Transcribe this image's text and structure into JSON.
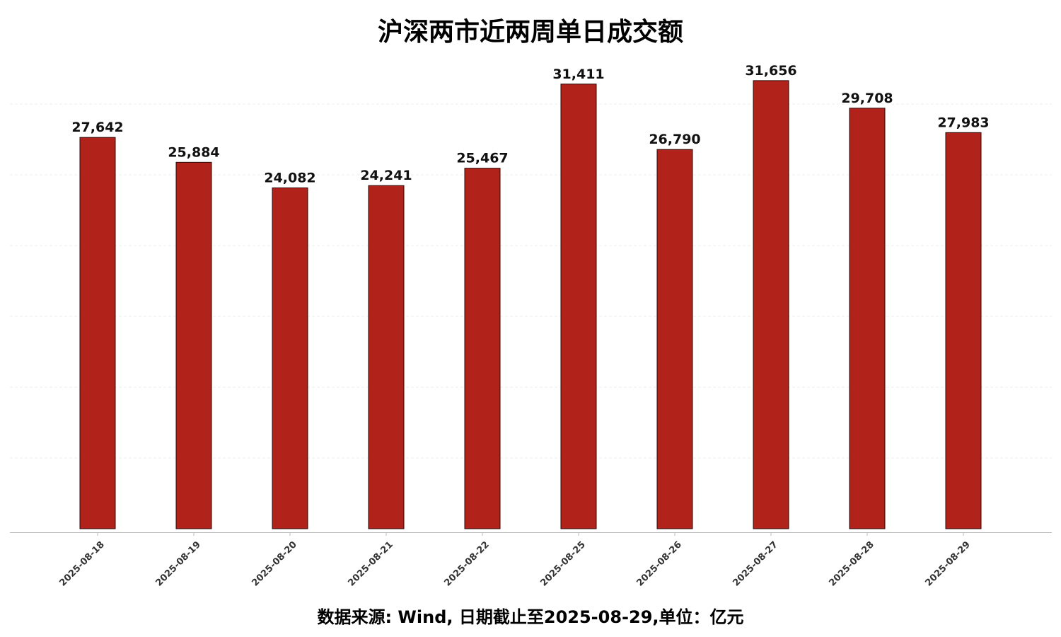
{
  "chart_data": {
    "type": "bar",
    "title": "沪深两市近两周单日成交额",
    "footnote": "数据来源: Wind, 日期截止至2025-08-29,单位：亿元",
    "categories": [
      "2025-08-18",
      "2025-08-19",
      "2025-08-20",
      "2025-08-21",
      "2025-08-22",
      "2025-08-25",
      "2025-08-26",
      "2025-08-27",
      "2025-08-28",
      "2025-08-29"
    ],
    "values": [
      27642,
      25884,
      24082,
      24241,
      25467,
      31411,
      26790,
      31656,
      29708,
      27983
    ],
    "data_labels": [
      "27,642",
      "25,884",
      "24,082",
      "24,241",
      "25,467",
      "31,411",
      "26,790",
      "31,656",
      "29,708",
      "27,983"
    ],
    "ylim": [
      0,
      35000
    ],
    "ytick_step": 5000,
    "grid": true,
    "bar_color": "#B0221A",
    "bar_edge_color": "#2a0a08"
  }
}
